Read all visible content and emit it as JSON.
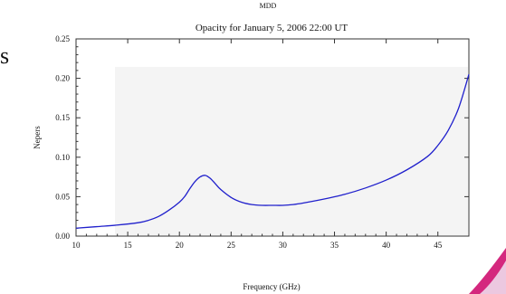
{
  "header": {
    "suptitle": "MDD",
    "side_letter": "s"
  },
  "chart_data": {
    "type": "line",
    "title": "Opacity for January 5, 2006 22:00 UT",
    "xlabel": "Frequency (GHz)",
    "ylabel": "Nepers",
    "xlim": [
      10,
      48
    ],
    "ylim": [
      0,
      0.25
    ],
    "x_ticks": [
      "10",
      "15",
      "20",
      "25",
      "30",
      "35",
      "40",
      "45"
    ],
    "y_ticks": [
      "0.00",
      "0.05",
      "0.10",
      "0.15",
      "0.20",
      "0.25"
    ],
    "grid": false,
    "series": [
      {
        "color": "#2020cc",
        "x": [
          10,
          12,
          14,
          16,
          17,
          18,
          19,
          20,
          20.5,
          21,
          21.5,
          22,
          22.5,
          23,
          23.5,
          24,
          25,
          26,
          27,
          28,
          29,
          30,
          31,
          32,
          34,
          36,
          38,
          40,
          42,
          44,
          45,
          46,
          47,
          48
        ],
        "y": [
          0.01,
          0.012,
          0.014,
          0.017,
          0.02,
          0.025,
          0.033,
          0.043,
          0.05,
          0.06,
          0.069,
          0.075,
          0.077,
          0.073,
          0.066,
          0.059,
          0.049,
          0.043,
          0.04,
          0.039,
          0.039,
          0.039,
          0.04,
          0.042,
          0.047,
          0.053,
          0.061,
          0.071,
          0.084,
          0.101,
          0.115,
          0.134,
          0.162,
          0.205
        ]
      }
    ]
  },
  "colors": {
    "line": "#2020cc",
    "axis": "#333333",
    "plot_bg": "#f4f4f4",
    "accent": "#d4287e"
  }
}
